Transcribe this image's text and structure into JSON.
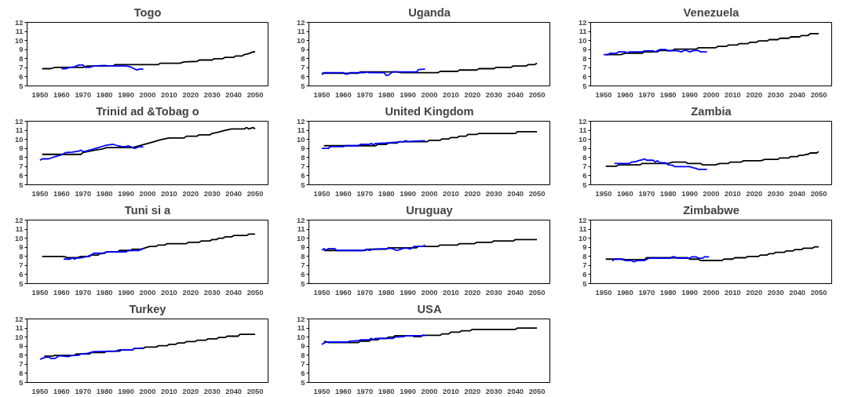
{
  "chart_data": [
    {
      "type": "line",
      "title": "Togo",
      "xlim": [
        1944,
        2056
      ],
      "ylim": [
        5,
        12
      ],
      "xticks": [
        1950,
        1960,
        1970,
        1980,
        1990,
        2000,
        2010,
        2020,
        2030,
        2040,
        2050
      ],
      "yticks": [
        5,
        6,
        7,
        8,
        9,
        10,
        11,
        12
      ],
      "grid": false,
      "series": [
        {
          "color": "#000000",
          "x": [
            1951,
            1955,
            1957,
            1970,
            1972,
            1984,
            1985,
            2005,
            2006,
            2015,
            2017,
            2023,
            2024,
            2030,
            2031,
            2035,
            2036,
            2040,
            2041,
            2044,
            2045,
            2047,
            2049,
            2050
          ],
          "values": [
            6.9,
            6.9,
            7.05,
            7.05,
            7.2,
            7.2,
            7.35,
            7.35,
            7.5,
            7.5,
            7.65,
            7.7,
            7.85,
            7.85,
            8.0,
            8.0,
            8.15,
            8.15,
            8.3,
            8.3,
            8.45,
            8.55,
            8.75,
            8.75
          ]
        },
        {
          "color": "#0000ff",
          "x": [
            1960,
            1962,
            1964,
            1966,
            1968,
            1970,
            1971,
            1973,
            1975,
            1980,
            1982,
            1990,
            1992,
            1995,
            1996,
            1998
          ],
          "values": [
            6.9,
            6.9,
            7.05,
            7.1,
            7.3,
            7.3,
            7.05,
            7.05,
            7.2,
            7.25,
            7.2,
            7.2,
            7.1,
            6.75,
            6.85,
            6.85
          ]
        }
      ]
    },
    {
      "type": "line",
      "title": "Uganda",
      "xlim": [
        1944,
        2056
      ],
      "ylim": [
        5,
        12
      ],
      "xticks": [
        1950,
        1960,
        1970,
        1980,
        1990,
        2000,
        2010,
        2020,
        2030,
        2040,
        2050
      ],
      "yticks": [
        5,
        6,
        7,
        8,
        9,
        10,
        11,
        12
      ],
      "grid": false,
      "series": [
        {
          "color": "#000000",
          "x": [
            1950,
            1967,
            1968,
            1985,
            1987,
            2004,
            2005,
            2013,
            2014,
            2022,
            2023,
            2030,
            2031,
            2038,
            2039,
            2045,
            2046,
            2049,
            2050
          ],
          "values": [
            6.4,
            6.4,
            6.55,
            6.55,
            6.45,
            6.45,
            6.6,
            6.6,
            6.75,
            6.75,
            6.9,
            6.9,
            7.05,
            7.05,
            7.2,
            7.2,
            7.35,
            7.35,
            7.5
          ]
        },
        {
          "color": "#0000ff",
          "x": [
            1950,
            1951,
            1960,
            1961,
            1962,
            1963,
            1970,
            1971,
            1972,
            1979,
            1980,
            1981,
            1983,
            1994,
            1995,
            1998
          ],
          "values": [
            6.25,
            6.45,
            6.45,
            6.3,
            6.3,
            6.45,
            6.45,
            6.55,
            6.45,
            6.45,
            6.15,
            6.2,
            6.55,
            6.55,
            6.8,
            6.85
          ]
        }
      ]
    },
    {
      "type": "line",
      "title": "Venezuela",
      "xlim": [
        1944,
        2056
      ],
      "ylim": [
        5,
        12
      ],
      "xticks": [
        1950,
        1960,
        1970,
        1980,
        1990,
        2000,
        2010,
        2020,
        2030,
        2040,
        2050
      ],
      "yticks": [
        5,
        6,
        7,
        8,
        9,
        10,
        11,
        12
      ],
      "grid": false,
      "series": [
        {
          "color": "#000000",
          "x": [
            1951,
            1958,
            1960,
            1968,
            1969,
            1975,
            1976,
            1982,
            1983,
            1993,
            1994,
            2002,
            2003,
            2007,
            2008,
            2012,
            2013,
            2017,
            2018,
            2021,
            2022,
            2026,
            2027,
            2031,
            2032,
            2036,
            2037,
            2041,
            2042,
            2045,
            2046,
            2050
          ],
          "values": [
            8.45,
            8.45,
            8.6,
            8.6,
            8.75,
            8.75,
            8.9,
            8.9,
            9.05,
            9.05,
            9.2,
            9.2,
            9.35,
            9.35,
            9.5,
            9.5,
            9.65,
            9.65,
            9.8,
            9.8,
            9.95,
            9.95,
            10.1,
            10.1,
            10.25,
            10.25,
            10.4,
            10.4,
            10.55,
            10.55,
            10.75,
            10.75
          ]
        },
        {
          "color": "#0000ff",
          "x": [
            1950,
            1952,
            1953,
            1956,
            1957,
            1960,
            1961,
            1962,
            1968,
            1969,
            1973,
            1974,
            1976,
            1979,
            1980,
            1984,
            1986,
            1988,
            1990,
            1992,
            1994,
            1995,
            1998
          ],
          "values": [
            8.45,
            8.45,
            8.6,
            8.6,
            8.75,
            8.75,
            8.6,
            8.75,
            8.75,
            8.85,
            8.85,
            8.75,
            9.0,
            9.0,
            8.85,
            8.9,
            8.75,
            8.95,
            8.75,
            8.9,
            8.9,
            8.75,
            8.75
          ]
        }
      ]
    },
    {
      "type": "line",
      "title": "Trinid ad &Tobag o",
      "xlim": [
        1944,
        2056
      ],
      "ylim": [
        5,
        12
      ],
      "xticks": [
        1950,
        1960,
        1970,
        1980,
        1990,
        2000,
        2010,
        2020,
        2030,
        2040,
        2050
      ],
      "yticks": [
        5,
        6,
        7,
        8,
        9,
        10,
        11,
        12
      ],
      "grid": false,
      "series": [
        {
          "color": "#000000",
          "x": [
            1951,
            1969,
            1970,
            1975,
            1979,
            1981,
            1993,
            1997,
            2000,
            2003,
            2006,
            2010,
            2017,
            2018,
            2023,
            2024,
            2029,
            2030,
            2033,
            2036,
            2039,
            2045,
            2046,
            2047,
            2049,
            2050
          ],
          "values": [
            8.35,
            8.35,
            8.55,
            8.8,
            8.95,
            9.1,
            9.1,
            9.35,
            9.55,
            9.75,
            9.95,
            10.15,
            10.15,
            10.35,
            10.35,
            10.5,
            10.5,
            10.65,
            10.8,
            11.0,
            11.15,
            11.15,
            11.3,
            11.15,
            11.3,
            11.15
          ]
        },
        {
          "color": "#0000ff",
          "x": [
            1950,
            1951,
            1954,
            1957,
            1960,
            1962,
            1965,
            1968,
            1969,
            1970,
            1972,
            1975,
            1978,
            1980,
            1982,
            1984,
            1986,
            1988,
            1990,
            1991,
            1993,
            1994,
            1996,
            1998
          ],
          "values": [
            7.7,
            7.85,
            7.85,
            8.1,
            8.3,
            8.55,
            8.6,
            8.7,
            8.8,
            8.65,
            8.75,
            8.95,
            9.15,
            9.3,
            9.4,
            9.45,
            9.3,
            9.2,
            9.2,
            9.3,
            9.1,
            9.0,
            9.2,
            9.15
          ]
        }
      ]
    },
    {
      "type": "line",
      "title": "United Kingdom",
      "xlim": [
        1944,
        2056
      ],
      "ylim": [
        5,
        12
      ],
      "xticks": [
        1950,
        1960,
        1970,
        1980,
        1990,
        2000,
        2010,
        2020,
        2030,
        2040,
        2050
      ],
      "yticks": [
        5,
        6,
        7,
        8,
        9,
        10,
        11,
        12
      ],
      "grid": false,
      "series": [
        {
          "color": "#000000",
          "x": [
            1951,
            1975,
            1976,
            1980,
            1981,
            1985,
            1986,
            1999,
            2000,
            2005,
            2006,
            2009,
            2010,
            2013,
            2014,
            2017,
            2018,
            2022,
            2023,
            2040,
            2041,
            2050
          ],
          "values": [
            9.3,
            9.3,
            9.45,
            9.45,
            9.6,
            9.6,
            9.75,
            9.75,
            9.9,
            9.9,
            10.05,
            10.05,
            10.2,
            10.2,
            10.35,
            10.35,
            10.55,
            10.55,
            10.65,
            10.65,
            10.85,
            10.85
          ]
        },
        {
          "color": "#0000ff",
          "x": [
            1950,
            1953,
            1954,
            1960,
            1961,
            1967,
            1968,
            1972,
            1973,
            1974,
            1975,
            1980,
            1985,
            1988,
            1989,
            1990,
            1993,
            1998
          ],
          "values": [
            9.0,
            9.0,
            9.2,
            9.2,
            9.3,
            9.3,
            9.45,
            9.45,
            9.55,
            9.4,
            9.55,
            9.6,
            9.7,
            9.75,
            9.85,
            9.75,
            9.8,
            9.85
          ]
        }
      ]
    },
    {
      "type": "line",
      "title": "Zambia",
      "xlim": [
        1944,
        2056
      ],
      "ylim": [
        5,
        12
      ],
      "xticks": [
        1950,
        1960,
        1970,
        1980,
        1990,
        2000,
        2010,
        2020,
        2030,
        2040,
        2050
      ],
      "yticks": [
        5,
        6,
        7,
        8,
        9,
        10,
        11,
        12
      ],
      "grid": false,
      "series": [
        {
          "color": "#000000",
          "x": [
            1951,
            1956,
            1957,
            1967,
            1968,
            1980,
            1982,
            1988,
            1989,
            1995,
            1996,
            2002,
            2004,
            2008,
            2009,
            2014,
            2015,
            2023,
            2025,
            2031,
            2032,
            2036,
            2037,
            2040,
            2041,
            2043,
            2044,
            2045,
            2046,
            2049,
            2050
          ],
          "values": [
            7.05,
            7.05,
            7.2,
            7.2,
            7.35,
            7.35,
            7.5,
            7.5,
            7.35,
            7.35,
            7.2,
            7.2,
            7.35,
            7.35,
            7.5,
            7.5,
            7.65,
            7.65,
            7.8,
            7.8,
            7.95,
            7.95,
            8.1,
            8.1,
            8.25,
            8.25,
            8.35,
            8.35,
            8.5,
            8.5,
            8.65
          ]
        },
        {
          "color": "#0000ff",
          "x": [
            1955,
            1962,
            1963,
            1965,
            1966,
            1968,
            1969,
            1970,
            1973,
            1974,
            1975,
            1976,
            1979,
            1980,
            1982,
            1983,
            1990,
            1992,
            1993,
            1994,
            1998
          ],
          "values": [
            7.35,
            7.35,
            7.5,
            7.55,
            7.65,
            7.75,
            7.85,
            7.7,
            7.7,
            7.5,
            7.65,
            7.45,
            7.4,
            7.2,
            7.15,
            7.0,
            7.0,
            6.85,
            6.8,
            6.7,
            6.7
          ]
        }
      ]
    },
    {
      "type": "line",
      "title": "Tuni si a",
      "xlim": [
        1944,
        2056
      ],
      "ylim": [
        5,
        12
      ],
      "xticks": [
        1950,
        1960,
        1970,
        1980,
        1990,
        2000,
        2010,
        2020,
        2030,
        2040,
        2050
      ],
      "yticks": [
        5,
        6,
        7,
        8,
        9,
        10,
        11,
        12
      ],
      "grid": false,
      "series": [
        {
          "color": "#000000",
          "x": [
            1951,
            1961,
            1963,
            1967,
            1969,
            1973,
            1974,
            1977,
            1978,
            1980,
            1981,
            1986,
            1987,
            1992,
            1993,
            1997,
            1999,
            2001,
            2004,
            2005,
            2008,
            2009,
            2018,
            2019,
            2024,
            2025,
            2029,
            2030,
            2032,
            2033,
            2035,
            2036,
            2039,
            2040,
            2046,
            2047,
            2050
          ],
          "values": [
            8.0,
            8.0,
            7.85,
            7.85,
            8.0,
            8.0,
            8.15,
            8.15,
            8.3,
            8.35,
            8.5,
            8.5,
            8.65,
            8.65,
            8.8,
            8.8,
            8.95,
            9.1,
            9.1,
            9.25,
            9.25,
            9.4,
            9.4,
            9.55,
            9.55,
            9.7,
            9.7,
            9.85,
            9.85,
            10.0,
            10.0,
            10.15,
            10.15,
            10.3,
            10.3,
            10.45,
            10.45
          ]
        },
        {
          "color": "#0000ff",
          "x": [
            1961,
            1964,
            1965,
            1966,
            1967,
            1969,
            1972,
            1974,
            1975,
            1979,
            1981,
            1990,
            1991,
            1996,
            1998
          ],
          "values": [
            7.7,
            7.7,
            7.85,
            7.7,
            7.8,
            7.85,
            8.0,
            8.2,
            8.35,
            8.35,
            8.5,
            8.5,
            8.65,
            8.65,
            8.85
          ]
        }
      ]
    },
    {
      "type": "line",
      "title": "Uruguay",
      "xlim": [
        1944,
        2056
      ],
      "ylim": [
        5,
        12
      ],
      "xticks": [
        1950,
        1960,
        1970,
        1980,
        1990,
        2000,
        2010,
        2020,
        2030,
        2040,
        2050
      ],
      "yticks": [
        5,
        6,
        7,
        8,
        9,
        10,
        11,
        12
      ],
      "grid": false,
      "series": [
        {
          "color": "#000000",
          "x": [
            1951,
            1970,
            1972,
            1980,
            1981,
            1994,
            1995,
            2004,
            2005,
            2013,
            2014,
            2021,
            2022,
            2029,
            2030,
            2039,
            2040,
            2050
          ],
          "values": [
            8.65,
            8.65,
            8.8,
            8.8,
            8.95,
            8.95,
            9.1,
            9.1,
            9.25,
            9.25,
            9.4,
            9.4,
            9.55,
            9.55,
            9.7,
            9.7,
            9.85,
            9.85
          ]
        },
        {
          "color": "#0000ff",
          "x": [
            1950,
            1951,
            1952,
            1953,
            1956,
            1957,
            1969,
            1971,
            1972,
            1974,
            1980,
            1982,
            1985,
            1988,
            1990,
            1991,
            1993,
            1997,
            1998
          ],
          "values": [
            8.7,
            8.85,
            8.7,
            8.85,
            8.85,
            8.65,
            8.65,
            8.8,
            8.65,
            8.8,
            8.85,
            8.9,
            8.65,
            8.9,
            8.9,
            8.8,
            9.1,
            9.1,
            9.25
          ]
        }
      ]
    },
    {
      "type": "line",
      "title": "Zimbabwe",
      "xlim": [
        1944,
        2056
      ],
      "ylim": [
        5,
        12
      ],
      "xticks": [
        1950,
        1960,
        1970,
        1980,
        1990,
        2000,
        2010,
        2020,
        2030,
        2040,
        2050
      ],
      "yticks": [
        5,
        6,
        7,
        8,
        9,
        10,
        11,
        12
      ],
      "grid": false,
      "series": [
        {
          "color": "#000000",
          "x": [
            1951,
            1959,
            1960,
            1969,
            1970,
            1989,
            1990,
            1994,
            1995,
            2005,
            2006,
            2010,
            2011,
            2016,
            2017,
            2022,
            2023,
            2026,
            2027,
            2029,
            2030,
            2034,
            2035,
            2038,
            2039,
            2042,
            2043,
            2047,
            2048,
            2050
          ],
          "values": [
            7.7,
            7.7,
            7.65,
            7.65,
            7.85,
            7.85,
            7.7,
            7.7,
            7.55,
            7.55,
            7.7,
            7.7,
            7.85,
            7.85,
            8.0,
            8.0,
            8.15,
            8.15,
            8.3,
            8.3,
            8.45,
            8.45,
            8.6,
            8.6,
            8.75,
            8.75,
            8.9,
            8.9,
            9.05,
            9.05
          ]
        },
        {
          "color": "#0000ff",
          "x": [
            1954,
            1955,
            1958,
            1960,
            1963,
            1964,
            1966,
            1969,
            1971,
            1981,
            1982,
            1983,
            1984,
            1990,
            1991,
            1993,
            1994,
            1996,
            1997,
            1999
          ],
          "values": [
            7.5,
            7.7,
            7.7,
            7.55,
            7.55,
            7.4,
            7.55,
            7.55,
            7.8,
            7.8,
            7.95,
            7.95,
            7.8,
            7.8,
            7.95,
            7.95,
            7.8,
            7.8,
            7.95,
            7.95
          ]
        }
      ]
    },
    {
      "type": "line",
      "title": "Turkey",
      "xlim": [
        1944,
        2056
      ],
      "ylim": [
        5,
        12
      ],
      "xticks": [
        1950,
        1960,
        1970,
        1980,
        1990,
        2000,
        2010,
        2020,
        2030,
        2040,
        2050
      ],
      "yticks": [
        5,
        6,
        7,
        8,
        9,
        10,
        11,
        12
      ],
      "grid": false,
      "series": [
        {
          "color": "#000000",
          "x": [
            1952,
            1956,
            1957,
            1966,
            1967,
            1973,
            1974,
            1980,
            1981,
            1987,
            1988,
            1993,
            1994,
            1998,
            1999,
            2004,
            2005,
            2009,
            2010,
            2013,
            2014,
            2017,
            2018,
            2022,
            2023,
            2027,
            2028,
            2032,
            2033,
            2036,
            2037,
            2042,
            2043,
            2050
          ],
          "values": [
            7.9,
            7.9,
            8.0,
            8.0,
            8.15,
            8.15,
            8.3,
            8.3,
            8.45,
            8.45,
            8.6,
            8.6,
            8.75,
            8.75,
            8.9,
            8.9,
            9.05,
            9.05,
            9.2,
            9.2,
            9.35,
            9.35,
            9.5,
            9.5,
            9.65,
            9.65,
            9.8,
            9.8,
            9.95,
            9.95,
            10.1,
            10.1,
            10.3,
            10.3
          ]
        },
        {
          "color": "#0000ff",
          "x": [
            1950,
            1952,
            1954,
            1955,
            1957,
            1959,
            1963,
            1965,
            1968,
            1969,
            1972,
            1975,
            1985,
            1987,
            1993,
            1994,
            1998
          ],
          "values": [
            7.55,
            7.75,
            7.8,
            7.65,
            7.65,
            7.95,
            7.85,
            8.0,
            8.0,
            8.15,
            8.2,
            8.4,
            8.45,
            8.6,
            8.6,
            8.75,
            8.8
          ]
        }
      ]
    },
    {
      "type": "line",
      "title": "USA",
      "xlim": [
        1944,
        2056
      ],
      "ylim": [
        5,
        12
      ],
      "xticks": [
        1950,
        1960,
        1970,
        1980,
        1990,
        2000,
        2010,
        2020,
        2030,
        2040,
        2050
      ],
      "yticks": [
        5,
        6,
        7,
        8,
        9,
        10,
        11,
        12
      ],
      "grid": false,
      "series": [
        {
          "color": "#000000",
          "x": [
            1951,
            1952,
            1953,
            1967,
            1968,
            1972,
            1973,
            1976,
            1977,
            1980,
            1981,
            1983,
            1984,
            1992,
            1993,
            1996,
            1997,
            2005,
            2006,
            2009,
            2010,
            2014,
            2015,
            2019,
            2020,
            2040,
            2041,
            2050
          ],
          "values": [
            9.5,
            9.5,
            9.4,
            9.4,
            9.55,
            9.55,
            9.7,
            9.7,
            9.85,
            9.85,
            10.0,
            10.0,
            10.15,
            10.15,
            10.05,
            10.05,
            10.2,
            10.2,
            10.35,
            10.35,
            10.55,
            10.55,
            10.7,
            10.7,
            10.85,
            10.85,
            11.0,
            11.0
          ]
        },
        {
          "color": "#0000ff",
          "x": [
            1950,
            1952,
            1962,
            1963,
            1967,
            1968,
            1972,
            1973,
            1974,
            1975,
            1983,
            1984,
            1988,
            1989,
            1996,
            1998
          ],
          "values": [
            9.2,
            9.45,
            9.45,
            9.55,
            9.6,
            9.7,
            9.7,
            9.85,
            9.7,
            9.85,
            9.85,
            10.0,
            10.05,
            10.15,
            10.15,
            10.2
          ]
        }
      ]
    }
  ]
}
